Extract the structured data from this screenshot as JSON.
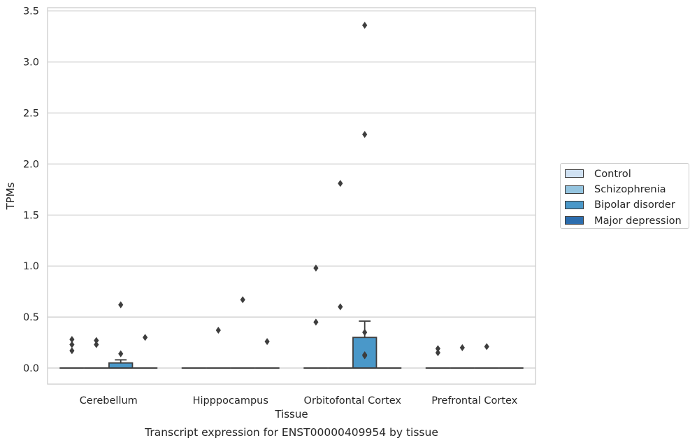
{
  "chart_data": {
    "type": "box",
    "title": "Transcript expression for ENST00000409954 by tissue",
    "xlabel": "Tissue",
    "ylabel": "TPMs",
    "ylim": [
      -0.16,
      3.55
    ],
    "yticks": [
      "0.0",
      "0.5",
      "1.0",
      "1.5",
      "2.0",
      "2.5",
      "3.0",
      "3.5"
    ],
    "categories": [
      "Cerebellum",
      "Hipppocampus",
      "Orbitofontal Cortex",
      "Prefrontal Cortex"
    ],
    "grid": true,
    "legend_position": "right",
    "series": [
      {
        "name": "Control",
        "color": "#d0e1f2",
        "boxes": [
          {
            "q1": 0,
            "median": 0,
            "q3": 0,
            "whisker_low": 0,
            "whisker_high": 0,
            "outliers": [
              0.17,
              0.23,
              0.28
            ]
          },
          {
            "q1": 0,
            "median": 0,
            "q3": 0,
            "whisker_low": 0,
            "whisker_high": 0,
            "outliers": []
          },
          {
            "q1": 0,
            "median": 0,
            "q3": 0,
            "whisker_low": 0,
            "whisker_high": 0,
            "outliers": [
              0.45,
              0.98
            ]
          },
          {
            "q1": 0,
            "median": 0,
            "q3": 0,
            "whisker_low": 0,
            "whisker_high": 0,
            "outliers": [
              0.15,
              0.19
            ]
          }
        ]
      },
      {
        "name": "Schizophrenia",
        "color": "#94c4df",
        "boxes": [
          {
            "q1": 0,
            "median": 0,
            "q3": 0,
            "whisker_low": 0,
            "whisker_high": 0,
            "outliers": [
              0.23,
              0.27
            ]
          },
          {
            "q1": 0,
            "median": 0,
            "q3": 0,
            "whisker_low": 0,
            "whisker_high": 0,
            "outliers": [
              0.37
            ]
          },
          {
            "q1": 0,
            "median": 0,
            "q3": 0,
            "whisker_low": 0,
            "whisker_high": 0,
            "outliers": [
              0.6,
              1.81
            ]
          },
          {
            "q1": 0,
            "median": 0,
            "q3": 0,
            "whisker_low": 0,
            "whisker_high": 0,
            "outliers": [
              0.2
            ]
          }
        ]
      },
      {
        "name": "Bipolar disorder",
        "color": "#4a98c9",
        "boxes": [
          {
            "q1": 0,
            "median": 0,
            "q3": 0.05,
            "whisker_low": 0,
            "whisker_high": 0.08,
            "outliers": [
              0.14,
              0.62
            ]
          },
          {
            "q1": 0,
            "median": 0,
            "q3": 0,
            "whisker_low": 0,
            "whisker_high": 0,
            "outliers": [
              0.67
            ]
          },
          {
            "q1": 0,
            "median": 0,
            "q3": 0.3,
            "whisker_low": 0,
            "whisker_high": 0.46,
            "outliers": [
              0.12,
              0.13,
              0.35,
              2.29,
              3.36
            ]
          },
          {
            "q1": 0,
            "median": 0,
            "q3": 0,
            "whisker_low": 0,
            "whisker_high": 0,
            "outliers": [
              0.21
            ]
          }
        ]
      },
      {
        "name": "Major depression",
        "color": "#2c6dae",
        "boxes": [
          {
            "q1": 0,
            "median": 0,
            "q3": 0,
            "whisker_low": 0,
            "whisker_high": 0,
            "outliers": [
              0.3
            ]
          },
          {
            "q1": 0,
            "median": 0,
            "q3": 0,
            "whisker_low": 0,
            "whisker_high": 0,
            "outliers": [
              0.26
            ]
          },
          {
            "q1": 0,
            "median": 0,
            "q3": 0,
            "whisker_low": 0,
            "whisker_high": 0,
            "outliers": []
          },
          {
            "q1": 0,
            "median": 0,
            "q3": 0,
            "whisker_low": 0,
            "whisker_high": 0,
            "outliers": []
          }
        ]
      }
    ]
  }
}
